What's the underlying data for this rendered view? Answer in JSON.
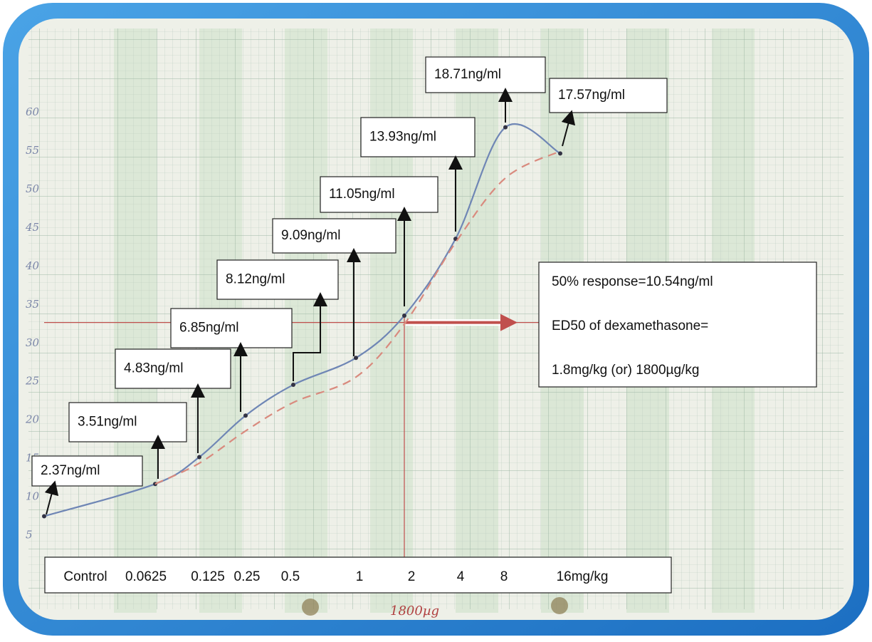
{
  "chart_data": {
    "type": "line",
    "categories": [
      "Control",
      "0.0625",
      "0.125",
      "0.25",
      "0.5",
      "1",
      "2",
      "4",
      "8",
      "16mg/kg"
    ],
    "series": [
      {
        "color": "#6f86b5",
        "values": [
          7.5,
          11.7,
          15.2,
          20.6,
          24.6,
          28.1,
          33.6,
          43.6,
          58.1,
          54.7
        ]
      },
      {
        "color": "#d98a7e",
        "dashed": true,
        "values": [
          null,
          11.7,
          14.4,
          18.6,
          22.3,
          25.6,
          32.5,
          43.1,
          51.5,
          55
        ]
      }
    ],
    "ylim": [
      -2,
      64
    ],
    "yticks": [
      5,
      10,
      15,
      20,
      25,
      30,
      35,
      40,
      45,
      50,
      55,
      60
    ],
    "reference_y": 32.7,
    "reference_color": "#c0504d",
    "annotations": [
      "2.37ng/ml",
      "3.51ng/ml",
      "4.83ng/ml",
      "6.85ng/ml",
      "8.12ng/ml",
      "9.09ng/ml",
      "11.05ng/ml",
      "13.93ng/ml",
      "18.71ng/ml",
      "17.57ng/ml"
    ],
    "info": [
      "50% response=10.54ng/ml",
      "ED50 of dexamethasone=",
      "1.8mg/kg (or) 1800µg/kg"
    ],
    "handwritten_note": "1800µg"
  }
}
